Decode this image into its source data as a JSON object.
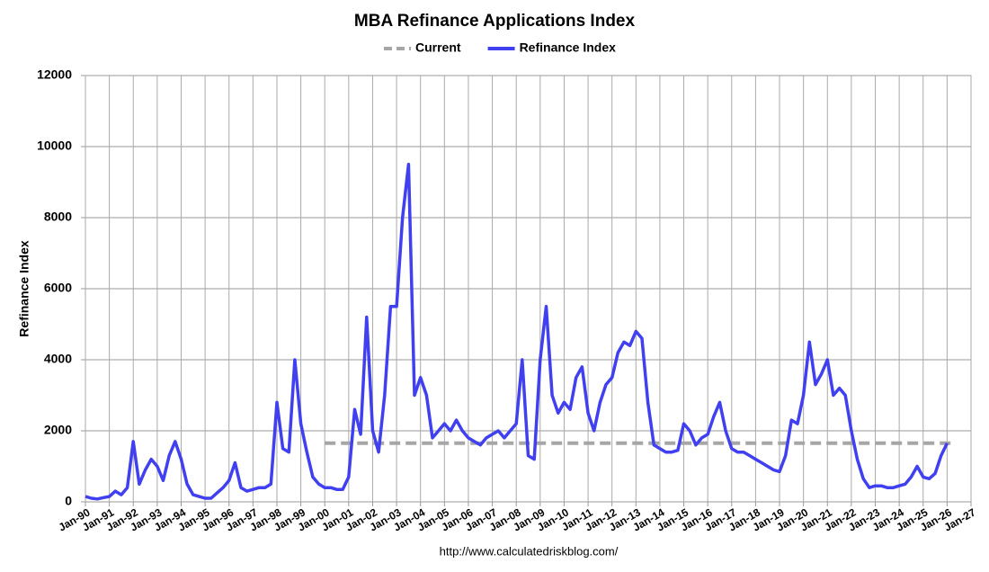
{
  "chart_data": {
    "type": "line",
    "title": "MBA Refinance Applications Index",
    "y_label": "Refinance Index",
    "source": "http://www.calculatedriskblog.com/",
    "grid": true,
    "legend": "top",
    "xlim": [
      "Jan-90",
      "Jan-27"
    ],
    "xticks": [
      "Jan-90",
      "Jan-91",
      "Jan-92",
      "Jan-93",
      "Jan-94",
      "Jan-95",
      "Jan-96",
      "Jan-97",
      "Jan-98",
      "Jan-99",
      "Jan-00",
      "Jan-01",
      "Jan-02",
      "Jan-03",
      "Jan-04",
      "Jan-05",
      "Jan-06",
      "Jan-07",
      "Jan-08",
      "Jan-09",
      "Jan-10",
      "Jan-11",
      "Jan-12",
      "Jan-13",
      "Jan-14",
      "Jan-15",
      "Jan-16",
      "Jan-17",
      "Jan-18",
      "Jan-19",
      "Jan-20",
      "Jan-21",
      "Jan-22",
      "Jan-23",
      "Jan-24",
      "Jan-25",
      "Jan-26",
      "Jan-27"
    ],
    "ylim": [
      0,
      12000
    ],
    "yticks": [
      0,
      2000,
      4000,
      6000,
      8000,
      10000,
      12000
    ],
    "series": [
      {
        "name": "Current",
        "color": "#a6a6a6",
        "dashed": true,
        "x": [
          "Jan-00",
          "Apr-26"
        ],
        "values": [
          1650,
          1650
        ]
      },
      {
        "name": "Refinance Index",
        "color": "#4040f0",
        "dashed": false,
        "x": [
          "Jan-90",
          "Apr-90",
          "Jul-90",
          "Oct-90",
          "Jan-91",
          "Apr-91",
          "Jul-91",
          "Oct-91",
          "Jan-92",
          "Apr-92",
          "Jul-92",
          "Oct-92",
          "Jan-93",
          "Apr-93",
          "Jul-93",
          "Oct-93",
          "Jan-94",
          "Apr-94",
          "Jul-94",
          "Oct-94",
          "Jan-95",
          "Apr-95",
          "Jul-95",
          "Oct-95",
          "Jan-96",
          "Apr-96",
          "Jul-96",
          "Oct-96",
          "Jan-97",
          "Apr-97",
          "Jul-97",
          "Oct-97",
          "Jan-98",
          "Apr-98",
          "Jul-98",
          "Oct-98",
          "Jan-99",
          "Apr-99",
          "Jul-99",
          "Oct-99",
          "Jan-00",
          "Apr-00",
          "Jul-00",
          "Oct-00",
          "Jan-01",
          "Apr-01",
          "Jul-01",
          "Oct-01",
          "Jan-02",
          "Apr-02",
          "Jul-02",
          "Oct-02",
          "Jan-03",
          "Apr-03",
          "Jul-03",
          "Oct-03",
          "Jan-04",
          "Apr-04",
          "Jul-04",
          "Oct-04",
          "Jan-05",
          "Apr-05",
          "Jul-05",
          "Oct-05",
          "Jan-06",
          "Apr-06",
          "Jul-06",
          "Oct-06",
          "Jan-07",
          "Apr-07",
          "Jul-07",
          "Oct-07",
          "Jan-08",
          "Apr-08",
          "Jul-08",
          "Oct-08",
          "Jan-09",
          "Apr-09",
          "Jul-09",
          "Oct-09",
          "Jan-10",
          "Apr-10",
          "Jul-10",
          "Oct-10",
          "Jan-11",
          "Apr-11",
          "Jul-11",
          "Oct-11",
          "Jan-12",
          "Apr-12",
          "Jul-12",
          "Oct-12",
          "Jan-13",
          "Apr-13",
          "Jul-13",
          "Oct-13",
          "Jan-14",
          "Apr-14",
          "Jul-14",
          "Oct-14",
          "Jan-15",
          "Apr-15",
          "Jul-15",
          "Oct-15",
          "Jan-16",
          "Apr-16",
          "Jul-16",
          "Oct-16",
          "Jan-17",
          "Apr-17",
          "Jul-17",
          "Oct-17",
          "Jan-18",
          "Apr-18",
          "Jul-18",
          "Oct-18",
          "Jan-19",
          "Apr-19",
          "Jul-19",
          "Oct-19",
          "Jan-20",
          "Apr-20",
          "Jul-20",
          "Oct-20",
          "Jan-21",
          "Apr-21",
          "Jul-21",
          "Oct-21",
          "Jan-22",
          "Apr-22",
          "Jul-22",
          "Oct-22",
          "Jan-23",
          "Apr-23",
          "Jul-23",
          "Oct-23",
          "Jan-24",
          "Apr-24",
          "Jul-24",
          "Oct-24",
          "Jan-25",
          "Apr-25",
          "Jul-25",
          "Oct-25",
          "Jan-26"
        ],
        "values": [
          150,
          100,
          80,
          120,
          150,
          300,
          200,
          400,
          1700,
          500,
          900,
          1200,
          1000,
          600,
          1300,
          1700,
          1200,
          500,
          200,
          150,
          100,
          100,
          250,
          400,
          600,
          1100,
          400,
          300,
          350,
          400,
          400,
          500,
          2800,
          1500,
          1400,
          4000,
          2200,
          1400,
          700,
          500,
          400,
          400,
          350,
          350,
          700,
          2600,
          1900,
          5200,
          2000,
          1400,
          3000,
          5500,
          5500,
          8000,
          9500,
          3000,
          3500,
          3000,
          1800,
          2000,
          2200,
          2000,
          2300,
          2000,
          1800,
          1700,
          1600,
          1800,
          1900,
          2000,
          1800,
          2000,
          2200,
          4000,
          1300,
          1200,
          4000,
          5500,
          3000,
          2500,
          2800,
          2600,
          3500,
          3800,
          2500,
          2000,
          2800,
          3300,
          3500,
          4200,
          4500,
          4400,
          4800,
          4600,
          2800,
          1600,
          1500,
          1400,
          1400,
          1450,
          2200,
          2000,
          1600,
          1800,
          1900,
          2400,
          2800,
          2000,
          1500,
          1400,
          1400,
          1300,
          1200,
          1100,
          1000,
          900,
          850,
          1300,
          2300,
          2200,
          3000,
          4500,
          3300,
          3600,
          4000,
          3000,
          3200,
          3000,
          2000,
          1200,
          650,
          400,
          450,
          450,
          400,
          400,
          450,
          500,
          700,
          1000,
          700,
          650,
          800,
          1300,
          1650
        ]
      }
    ]
  }
}
